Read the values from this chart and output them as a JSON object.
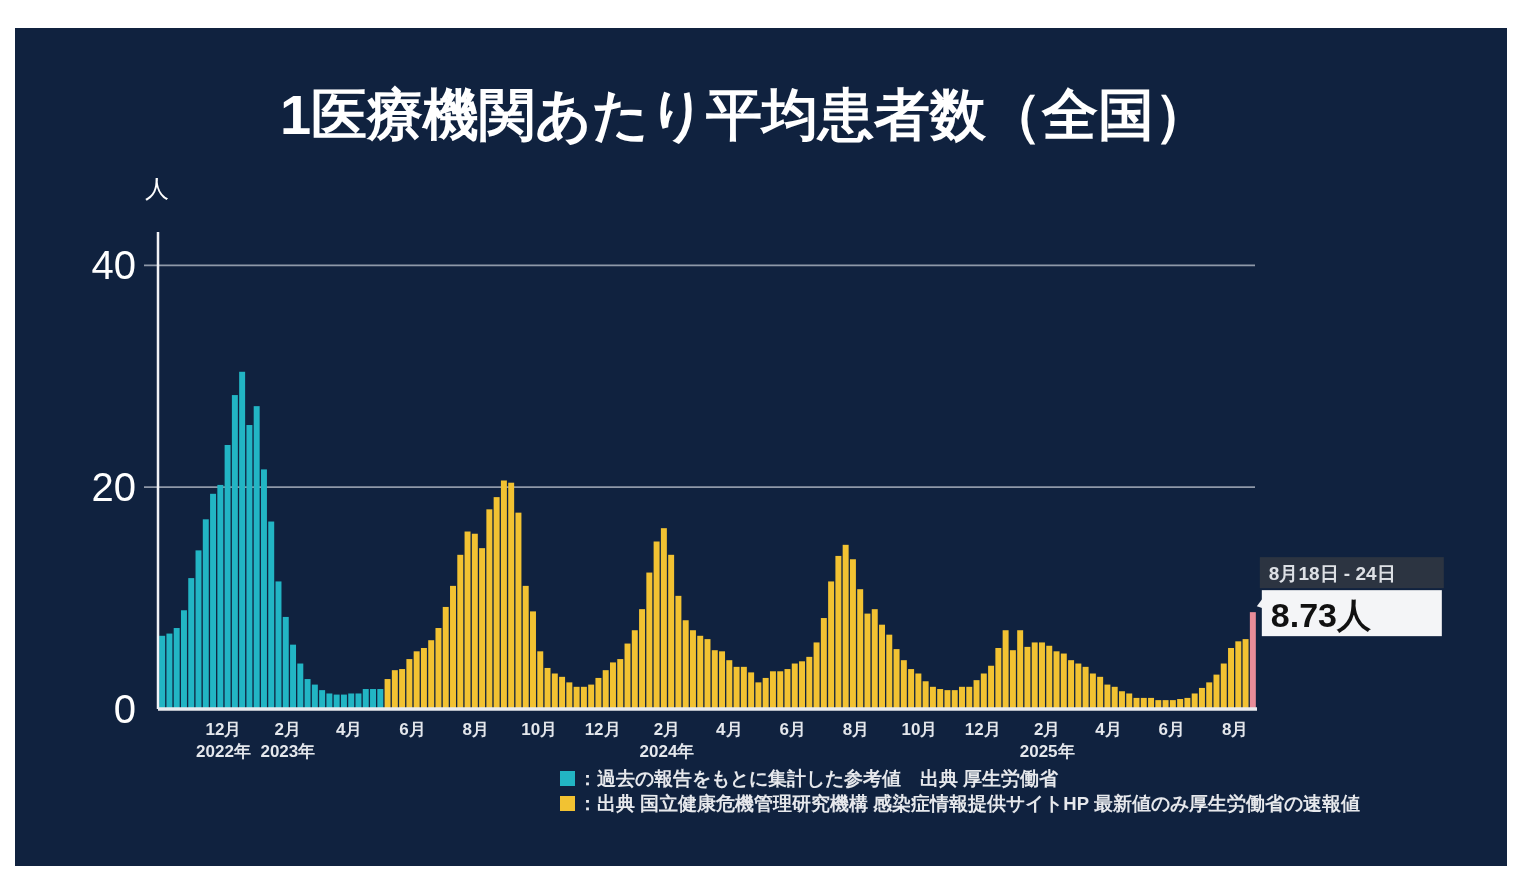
{
  "chart_data": {
    "type": "bar",
    "title": "1医療機関あたり平均患者数（全国）",
    "ylabel": "人",
    "ylim": [
      0,
      43
    ],
    "yticks": [
      0,
      20,
      40
    ],
    "grid": "y",
    "legend": "bottom",
    "xlim": [
      "2022-09-29",
      "2025-08-22"
    ],
    "xticks": [
      {
        "value": "2022-12-01",
        "label": "12月\n2022年"
      },
      {
        "value": "2023-02-01",
        "label": "2月\n2023年"
      },
      {
        "value": "2023-04-01",
        "label": "4月"
      },
      {
        "value": "2023-06-01",
        "label": "6月"
      },
      {
        "value": "2023-08-01",
        "label": "8月"
      },
      {
        "value": "2023-10-01",
        "label": "10月"
      },
      {
        "value": "2023-12-01",
        "label": "12月"
      },
      {
        "value": "2024-02-01",
        "label": "2月\n2024年"
      },
      {
        "value": "2024-04-01",
        "label": "4月"
      },
      {
        "value": "2024-06-01",
        "label": "6月"
      },
      {
        "value": "2024-08-01",
        "label": "8月"
      },
      {
        "value": "2024-10-01",
        "label": "10月"
      },
      {
        "value": "2024-12-01",
        "label": "12月"
      },
      {
        "value": "2025-02-01",
        "label": "2月\n2025年"
      },
      {
        "value": "2025-04-01",
        "label": "4月"
      },
      {
        "value": "2025-06-01",
        "label": "6月"
      },
      {
        "value": "2025-08-01",
        "label": "8月"
      }
    ],
    "series": [
      {
        "name": "：過去の報告をもとに集計した参考値　出典 厚生労働省",
        "color": "#22b5c4",
        "x": [
          "2022-10-03",
          "2022-10-10",
          "2022-10-17",
          "2022-10-24",
          "2022-10-31",
          "2022-11-07",
          "2022-11-14",
          "2022-11-21",
          "2022-11-28",
          "2022-12-05",
          "2022-12-12",
          "2022-12-19",
          "2022-12-26",
          "2023-01-02",
          "2023-01-09",
          "2023-01-16",
          "2023-01-23",
          "2023-01-30",
          "2023-02-06",
          "2023-02-13",
          "2023-02-20",
          "2023-02-27",
          "2023-03-06",
          "2023-03-13",
          "2023-03-20",
          "2023-03-27",
          "2023-04-03",
          "2023-04-10",
          "2023-04-17",
          "2023-04-24",
          "2023-05-01"
        ],
        "values": [
          6.6,
          6.8,
          7.3,
          8.9,
          11.8,
          14.3,
          17.1,
          19.4,
          20.2,
          23.8,
          28.3,
          30.4,
          25.6,
          27.3,
          21.6,
          16.9,
          11.5,
          8.3,
          5.8,
          4.1,
          2.7,
          2.2,
          1.7,
          1.4,
          1.3,
          1.3,
          1.4,
          1.4,
          1.8,
          1.8,
          1.8
        ]
      },
      {
        "name": "：出典 国立健康危機管理研究機構 感染症情報提供サイトHP 最新値のみ厚生労働省の速報値",
        "color": "#f2c232",
        "x": [
          "2023-05-08",
          "2023-05-15",
          "2023-05-22",
          "2023-05-29",
          "2023-06-05",
          "2023-06-12",
          "2023-06-19",
          "2023-06-26",
          "2023-07-03",
          "2023-07-10",
          "2023-07-17",
          "2023-07-24",
          "2023-07-31",
          "2023-08-07",
          "2023-08-14",
          "2023-08-21",
          "2023-08-28",
          "2023-09-04",
          "2023-09-11",
          "2023-09-18",
          "2023-09-25",
          "2023-10-02",
          "2023-10-09",
          "2023-10-16",
          "2023-10-23",
          "2023-10-30",
          "2023-11-06",
          "2023-11-13",
          "2023-11-20",
          "2023-11-27",
          "2023-12-04",
          "2023-12-11",
          "2023-12-18",
          "2023-12-25",
          "2024-01-01",
          "2024-01-08",
          "2024-01-15",
          "2024-01-22",
          "2024-01-29",
          "2024-02-05",
          "2024-02-12",
          "2024-02-19",
          "2024-02-26",
          "2024-03-04",
          "2024-03-11",
          "2024-03-18",
          "2024-03-25",
          "2024-04-01",
          "2024-04-08",
          "2024-04-15",
          "2024-04-22",
          "2024-04-29",
          "2024-05-06",
          "2024-05-13",
          "2024-05-20",
          "2024-05-27",
          "2024-06-03",
          "2024-06-10",
          "2024-06-17",
          "2024-06-24",
          "2024-07-01",
          "2024-07-08",
          "2024-07-15",
          "2024-07-22",
          "2024-07-29",
          "2024-08-05",
          "2024-08-12",
          "2024-08-19",
          "2024-08-26",
          "2024-09-02",
          "2024-09-09",
          "2024-09-16",
          "2024-09-23",
          "2024-09-30",
          "2024-10-07",
          "2024-10-14",
          "2024-10-21",
          "2024-10-28",
          "2024-11-04",
          "2024-11-11",
          "2024-11-18",
          "2024-11-25",
          "2024-12-02",
          "2024-12-09",
          "2024-12-16",
          "2024-12-23",
          "2024-12-30",
          "2025-01-06",
          "2025-01-13",
          "2025-01-20",
          "2025-01-27",
          "2025-02-03",
          "2025-02-10",
          "2025-02-17",
          "2025-02-24",
          "2025-03-03",
          "2025-03-10",
          "2025-03-17",
          "2025-03-24",
          "2025-03-31",
          "2025-04-07",
          "2025-04-14",
          "2025-04-21",
          "2025-04-28",
          "2025-05-05",
          "2025-05-12",
          "2025-05-19",
          "2025-05-26",
          "2025-06-02",
          "2025-06-09",
          "2025-06-16",
          "2025-06-23",
          "2025-06-30",
          "2025-07-07",
          "2025-07-14",
          "2025-07-21",
          "2025-07-28",
          "2025-08-04",
          "2025-08-11"
        ],
        "values": [
          2.7,
          3.5,
          3.6,
          4.5,
          5.2,
          5.5,
          6.2,
          7.3,
          9.2,
          11.1,
          13.9,
          16.0,
          15.8,
          14.5,
          18.0,
          19.1,
          20.6,
          20.4,
          17.7,
          11.1,
          8.8,
          5.2,
          3.7,
          3.2,
          2.9,
          2.4,
          2.0,
          2.0,
          2.2,
          2.8,
          3.5,
          4.2,
          4.5,
          5.9,
          7.1,
          9.0,
          12.3,
          15.1,
          16.3,
          13.9,
          10.2,
          8.0,
          7.1,
          6.6,
          6.3,
          5.3,
          5.2,
          4.4,
          3.8,
          3.8,
          3.3,
          2.4,
          2.8,
          3.4,
          3.4,
          3.6,
          4.1,
          4.3,
          4.7,
          6.0,
          8.2,
          11.5,
          13.8,
          14.8,
          13.5,
          10.8,
          8.6,
          9.0,
          7.6,
          6.7,
          5.4,
          4.4,
          3.6,
          3.2,
          2.5,
          2.0,
          1.8,
          1.7,
          1.7,
          2.0,
          2.0,
          2.6,
          3.2,
          3.9,
          5.5,
          7.1,
          5.3,
          7.1,
          5.6,
          6.0,
          6.0,
          5.7,
          5.2,
          5.0,
          4.4,
          4.1,
          3.8,
          3.2,
          2.9,
          2.2,
          2.0,
          1.6,
          1.4,
          1.0,
          1.0,
          1.0,
          0.8,
          0.8,
          0.8,
          0.9,
          1.0,
          1.4,
          1.9,
          2.4,
          3.1,
          4.1,
          5.5,
          6.1,
          6.3
        ]
      },
      {
        "color": "#e88c98",
        "x": [
          "2025-08-18"
        ],
        "values": [
          8.73
        ]
      }
    ],
    "annotations": [
      {
        "text": "8月18日 - 24日",
        "x": "2025-08-18",
        "y": 8.73
      },
      {
        "text": "8.73人",
        "x": "2025-08-18",
        "y": 8.73
      }
    ]
  }
}
